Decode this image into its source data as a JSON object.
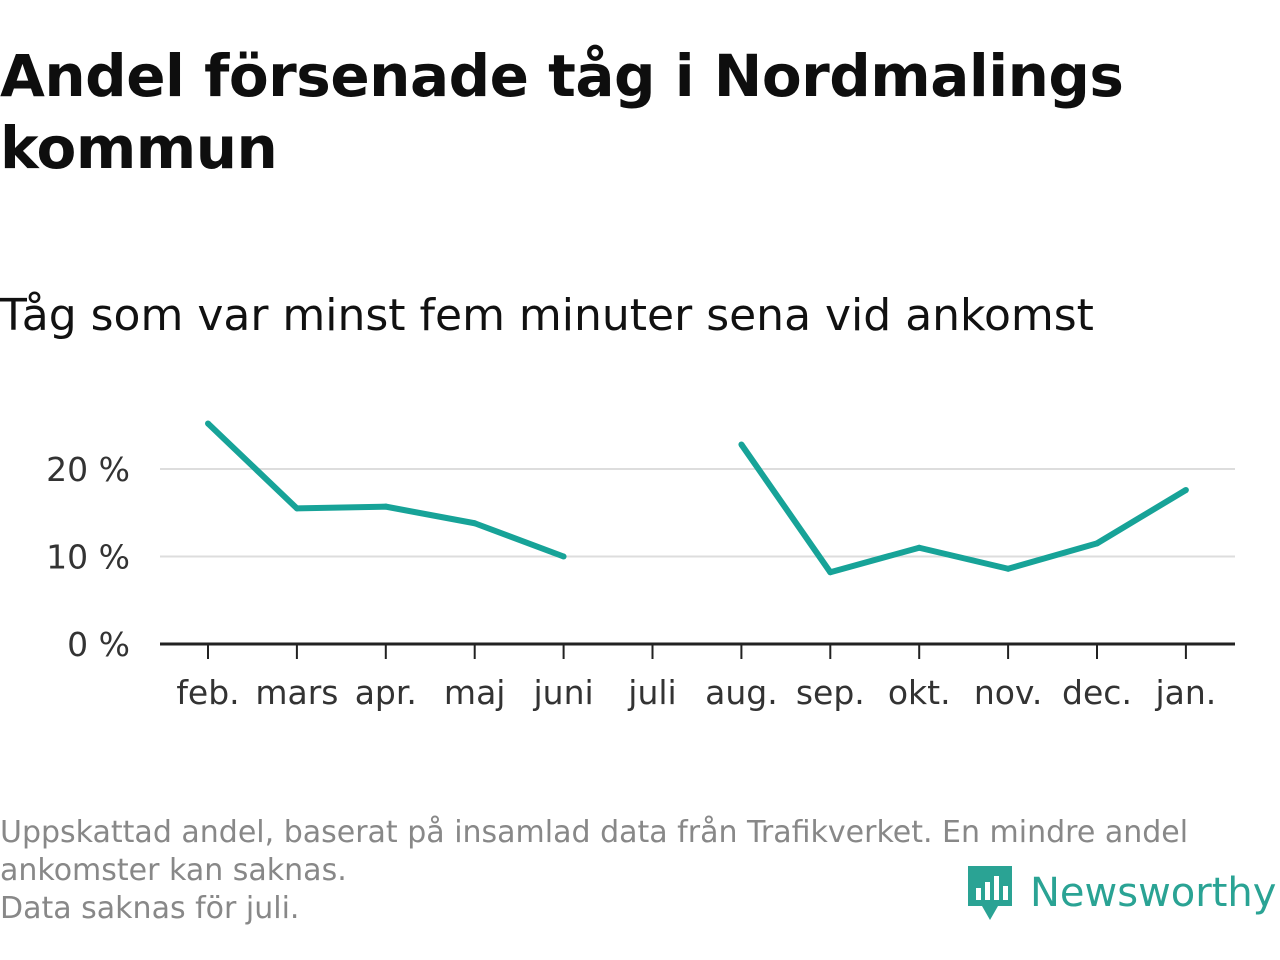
{
  "title": "Andel försenade tåg i Nordmalings kommun",
  "subtitle": "Tåg som var minst fem minuter sena vid ankomst",
  "footnote": [
    "Uppskattad andel, baserat på insamlad data från Trafikverket. En mindre andel",
    "ankomster kan saknas.",
    "Data saknas för juli."
  ],
  "brand": "Newsworthy",
  "colors": {
    "line": "#17a398",
    "grid": "#dddddd",
    "axis": "#222222",
    "logo": "#2aa394"
  },
  "chart_data": {
    "type": "line",
    "categories": [
      "feb.",
      "mars",
      "apr.",
      "maj",
      "juni",
      "juli",
      "aug.",
      "sep.",
      "okt.",
      "nov.",
      "dec.",
      "jan."
    ],
    "series": [
      {
        "values": [
          25.2,
          15.5,
          15.7,
          13.8,
          10.0,
          null,
          22.8,
          8.2,
          11.0,
          8.6,
          11.5,
          17.6
        ]
      }
    ],
    "yticks": [
      0,
      10,
      20
    ],
    "ytick_labels": [
      "0 %",
      "10 %",
      "20 %"
    ],
    "ylim": [
      0,
      28
    ],
    "xlabel": "",
    "ylabel": "",
    "grid": true,
    "legend": "none"
  }
}
